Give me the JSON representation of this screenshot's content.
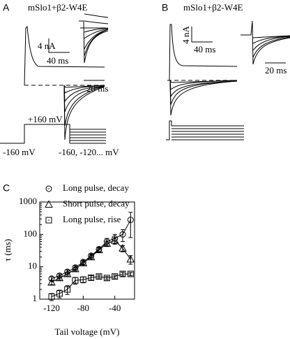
{
  "panel_a": {
    "label": "A",
    "title": "mSlo1+β2-W4E",
    "current_scale": "4 nA",
    "time_scale": "40 ms",
    "inset_time_scale": "20 ms",
    "step_voltage": "+160 mV",
    "holding_voltage": "-160 mV",
    "tail_voltages": "-160, -120... mV"
  },
  "panel_b": {
    "label": "B",
    "title": "mSlo1+β2-W4E",
    "current_scale": "4 nA",
    "time_scale": "40 ms",
    "inset_time_scale": "20 ms"
  },
  "chart_data": {
    "type": "scatter",
    "label": "C",
    "x_label": "Tail voltage (mV)",
    "y_label": "τ (ms)",
    "x": [
      -120,
      -110,
      -100,
      -90,
      -80,
      -70,
      -60,
      -50,
      -40,
      -30,
      -20
    ],
    "series": [
      {
        "name": "Long pulse, decay",
        "marker": "circle",
        "color": "#000000",
        "values": [
          4.3,
          5.3,
          7,
          9.5,
          14,
          22,
          35,
          60,
          75,
          100,
          280
        ],
        "errors": [
          0.6,
          0.7,
          1,
          1.3,
          2,
          3,
          6,
          15,
          25,
          40,
          200
        ]
      },
      {
        "name": "Short pulse, decay",
        "marker": "triangle",
        "color": "#000000",
        "values": [
          3.3,
          4.5,
          6,
          8.5,
          13,
          20,
          33,
          52,
          65,
          37,
          17
        ],
        "errors": [
          0.5,
          0.6,
          0.8,
          1.2,
          2,
          3,
          5,
          10,
          15,
          8,
          5
        ]
      },
      {
        "name": "Long pulse, rise",
        "marker": "square",
        "color": "#000000",
        "values": [
          1.2,
          1.5,
          2,
          3.8,
          4,
          4.6,
          5,
          4.5,
          5,
          6,
          6
        ],
        "errors": [
          0.3,
          0.4,
          0.6,
          0.9,
          0.8,
          0.7,
          0.6,
          0.5,
          0.6,
          0.8,
          0.7
        ]
      }
    ],
    "xlim": [
      -135,
      -15
    ],
    "xticks": [
      -120,
      -80,
      -40
    ],
    "ylim": [
      1,
      1000
    ],
    "yticks": [
      1,
      10,
      100,
      1000
    ],
    "log_y": true
  }
}
